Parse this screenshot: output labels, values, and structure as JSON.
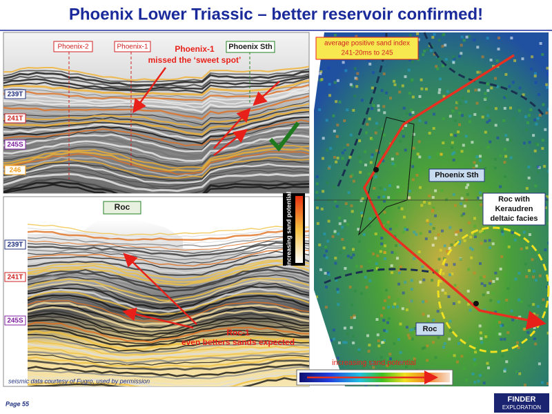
{
  "header": {
    "title": "Phoenix Lower Triassic – better reservoir confirmed!"
  },
  "seismic_top": {
    "wells": [
      "Phoenix-2",
      "Phoenix-1",
      "Phoenix Sth"
    ],
    "annotation": [
      "Phoenix-1",
      "missed the ‘sweet spot’"
    ],
    "horizons": [
      "239T",
      "241T",
      "245S",
      "246"
    ]
  },
  "seismic_bottom": {
    "well": "Roc",
    "annotation": [
      "Roc-1",
      "even betters sands expected"
    ],
    "horizons": [
      "239T",
      "241T",
      "245S"
    ],
    "credit": "seismic data courtesy of Fugro, used by permission"
  },
  "legend": {
    "label": "increasing sand potential"
  },
  "map": {
    "title": [
      "average positive sand index",
      "241-20ms to 245"
    ],
    "labels": [
      "Phoenix Sth",
      "Roc with",
      "Keraudren",
      "deltaic facies",
      "Roc"
    ],
    "colorbar_label": "increasing sand potential"
  },
  "footer": {
    "page": "Page 55",
    "logo": [
      "FINDER",
      "EXPLORATION"
    ]
  }
}
